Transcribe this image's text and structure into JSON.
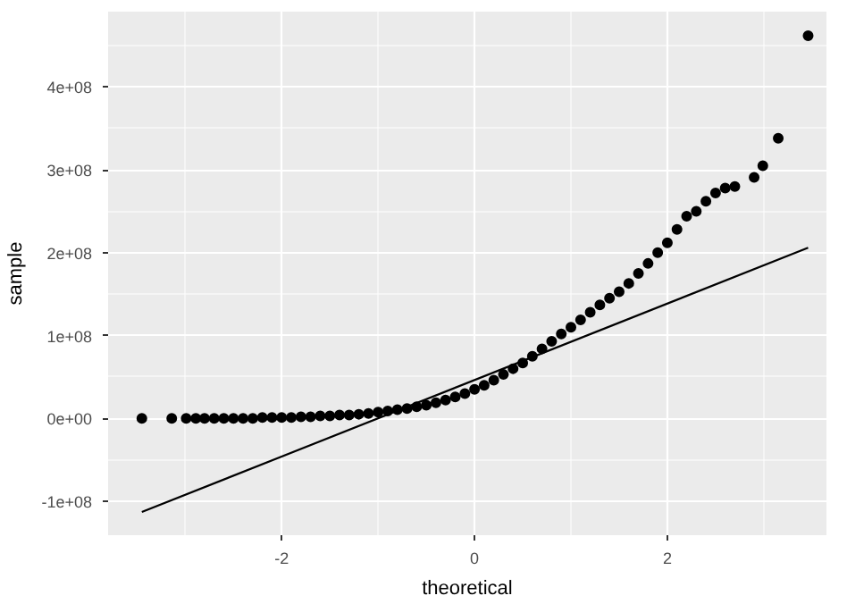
{
  "chart_data": {
    "type": "scatter",
    "xlabel": "theoretical",
    "ylabel": "sample",
    "xlim": [
      -3.8,
      3.65
    ],
    "ylim": [
      -141000000,
      491000000
    ],
    "xticks": [
      -2,
      0,
      2
    ],
    "yticks": [
      {
        "value": -100000000,
        "label": "-1e+08"
      },
      {
        "value": 0,
        "label": "0e+00"
      },
      {
        "value": 100000000,
        "label": "1e+08"
      },
      {
        "value": 200000000,
        "label": "2e+08"
      },
      {
        "value": 300000000,
        "label": "3e+08"
      },
      {
        "value": 400000000,
        "label": "4e+08"
      }
    ],
    "grid": true,
    "series": [
      {
        "marker": "circle",
        "color": "#000000",
        "x": [
          -3.45,
          -3.14,
          -2.99,
          -2.89,
          -2.8,
          -2.7,
          -2.6,
          -2.5,
          -2.4,
          -2.3,
          -2.2,
          -2.1,
          -2.0,
          -1.9,
          -1.8,
          -1.7,
          -1.6,
          -1.5,
          -1.4,
          -1.3,
          -1.2,
          -1.1,
          -1.0,
          -0.9,
          -0.8,
          -0.7,
          -0.6,
          -0.5,
          -0.4,
          -0.3,
          -0.2,
          -0.1,
          0,
          0.1,
          0.2,
          0.3,
          0.4,
          0.5,
          0.6,
          0.7,
          0.8,
          0.9,
          1.0,
          1.1,
          1.2,
          1.3,
          1.4,
          1.5,
          1.6,
          1.7,
          1.8,
          1.9,
          2.0,
          2.1,
          2.2,
          2.3,
          2.4,
          2.5,
          2.6,
          2.7,
          2.9,
          2.99,
          3.15,
          3.46
        ],
        "values": [
          0,
          0,
          0,
          0,
          0,
          0,
          0,
          0,
          0,
          0,
          1000000,
          1000000,
          1000000,
          1000000,
          2000000,
          2000000,
          3000000,
          3000000,
          4000000,
          4000000,
          5000000,
          6000000,
          7500000,
          9000000,
          10500000,
          12000000,
          14000000,
          16000000,
          19000000,
          22000000,
          26000000,
          30000000,
          35000000,
          40000000,
          46000000,
          53000000,
          60000000,
          67000000,
          75000000,
          84000000,
          93000000,
          102000000,
          110000000,
          119000000,
          128000000,
          137000000,
          145000000,
          153000000,
          163000000,
          175000000,
          187000000,
          200000000,
          212000000,
          228000000,
          244000000,
          250000000,
          262000000,
          272000000,
          278000000,
          280000000,
          291000000,
          305000000,
          338000000,
          462000000
        ]
      },
      {
        "type": "line",
        "marker": "none",
        "color": "#000000",
        "x": [
          -3.45,
          3.46
        ],
        "values": [
          -113000000,
          206000000
        ]
      }
    ]
  }
}
